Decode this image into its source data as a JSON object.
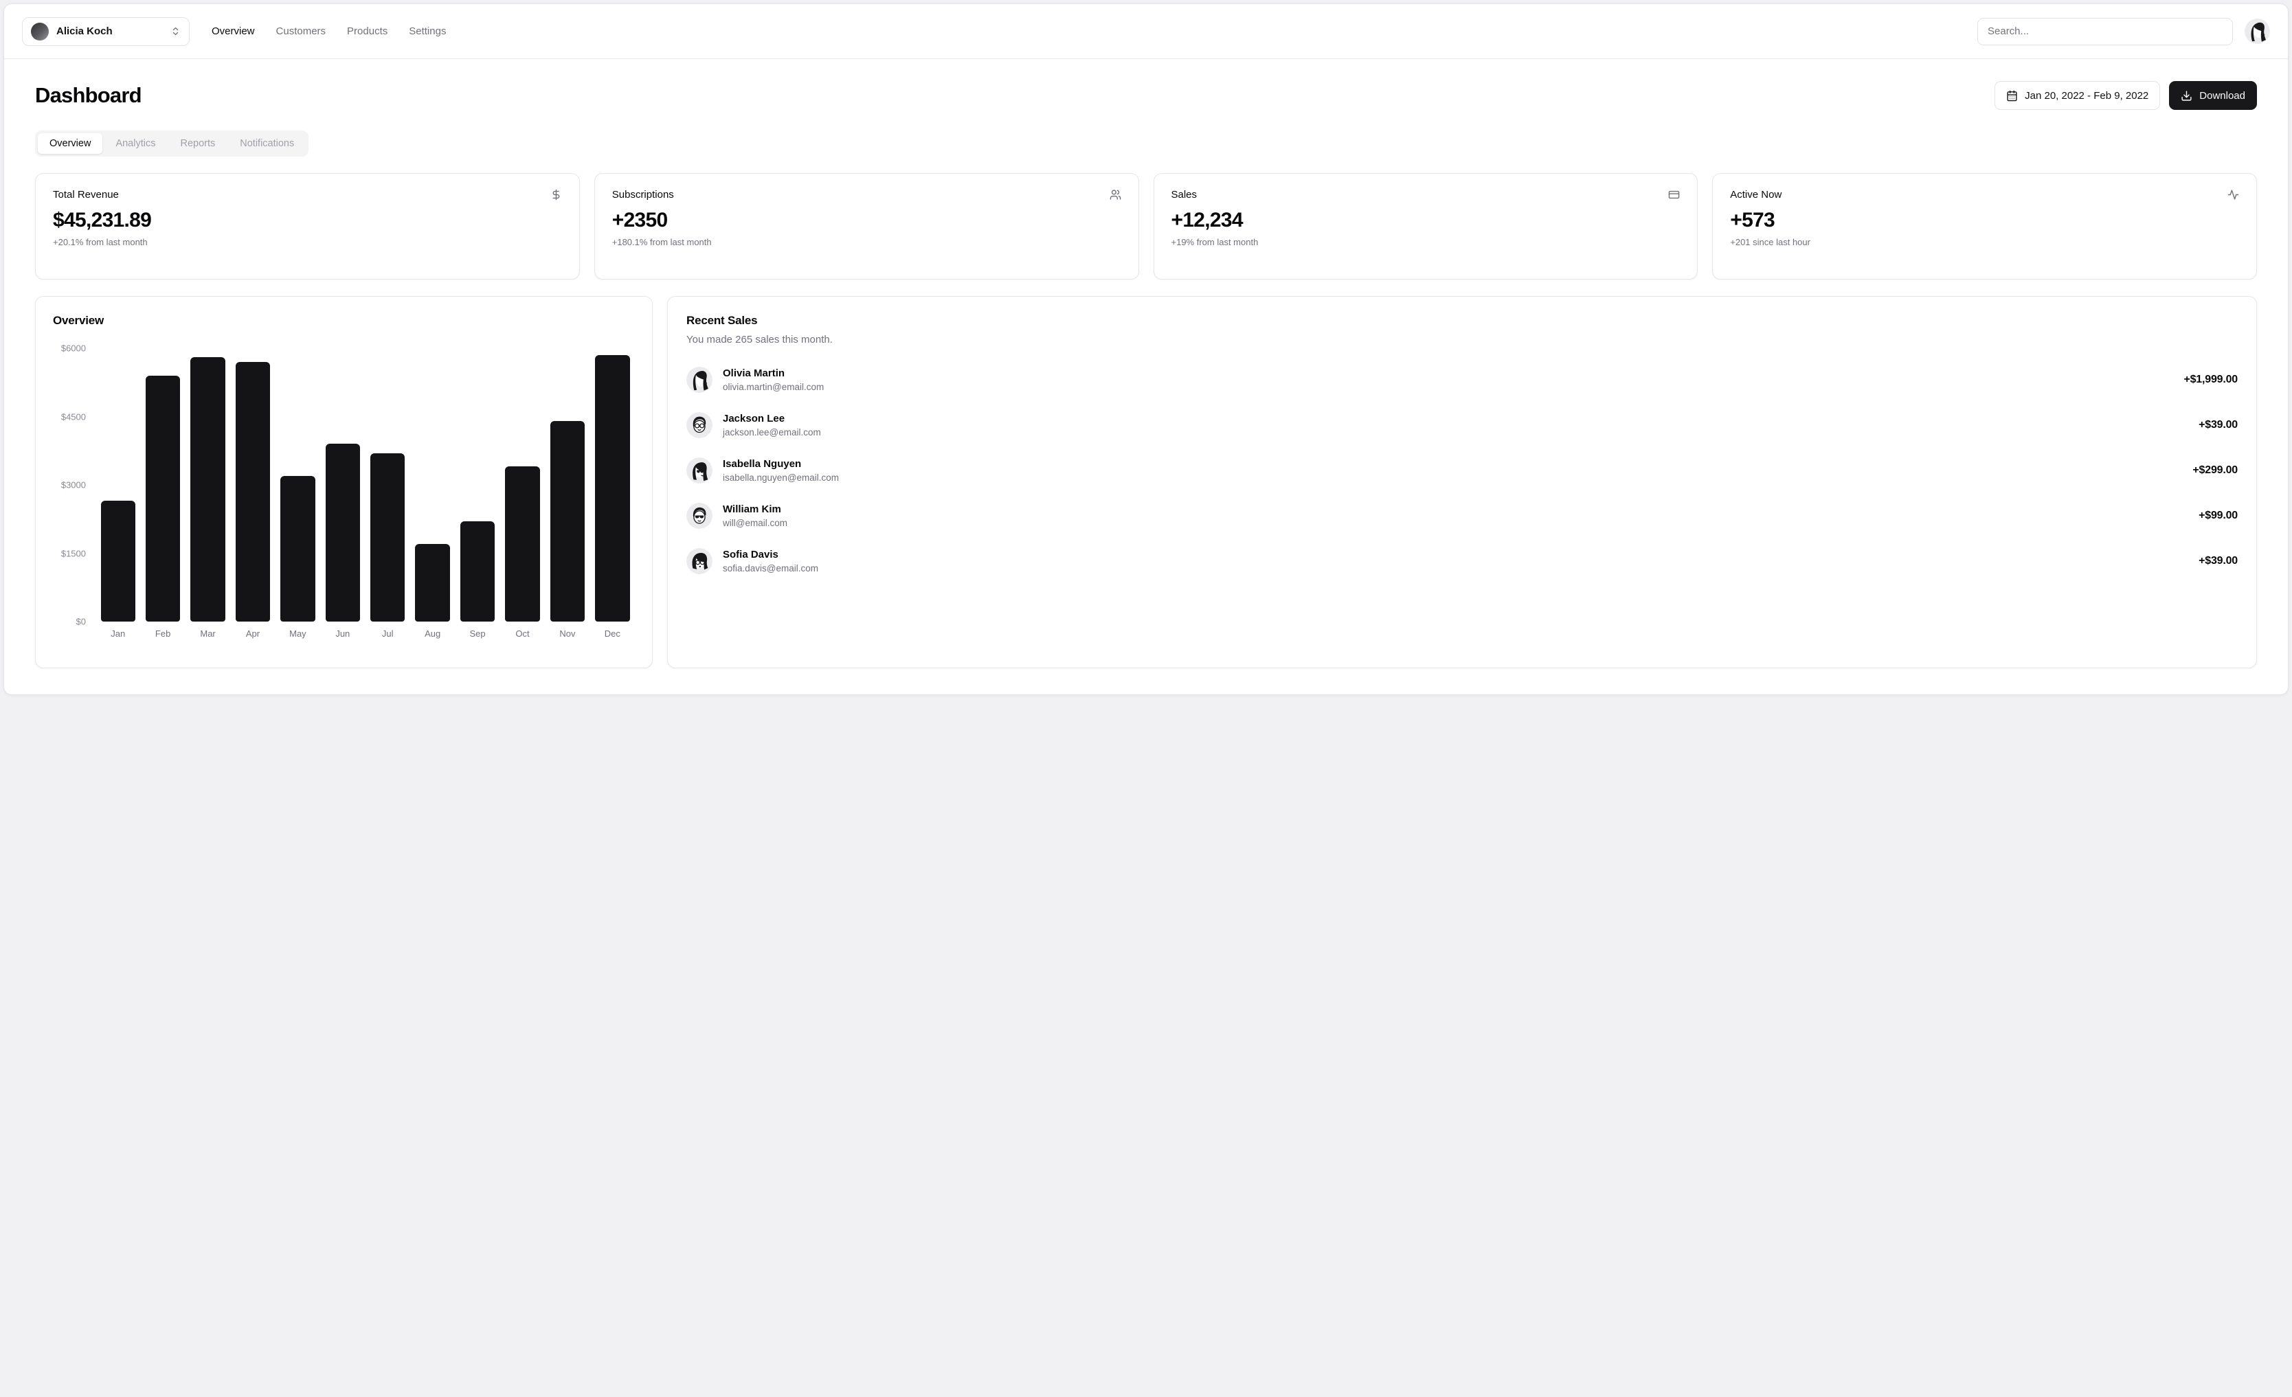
{
  "header": {
    "team_switcher": {
      "name": "Alicia Koch"
    },
    "nav": {
      "0": "Overview",
      "1": "Customers",
      "2": "Products",
      "3": "Settings"
    },
    "search_placeholder": "Search..."
  },
  "page": {
    "title": "Dashboard",
    "date_range": "Jan 20, 2022 - Feb 9, 2022",
    "download_label": "Download",
    "tabs": {
      "0": "Overview",
      "1": "Analytics",
      "2": "Reports",
      "3": "Notifications"
    },
    "active_tab": "Overview"
  },
  "stats": [
    {
      "title": "Total Revenue",
      "icon": "dollar-sign",
      "value": "$45,231.89",
      "sub": "+20.1% from last month"
    },
    {
      "title": "Subscriptions",
      "icon": "users",
      "value": "+2350",
      "sub": "+180.1% from last month"
    },
    {
      "title": "Sales",
      "icon": "credit-card",
      "value": "+12,234",
      "sub": "+19% from last month"
    },
    {
      "title": "Active Now",
      "icon": "activity",
      "value": "+573",
      "sub": "+201 since last hour"
    }
  ],
  "chart_data": {
    "type": "bar",
    "title": "Overview",
    "categories": [
      "Jan",
      "Feb",
      "Mar",
      "Apr",
      "May",
      "Jun",
      "Jul",
      "Aug",
      "Sep",
      "Oct",
      "Nov",
      "Dec"
    ],
    "values": [
      2650,
      5400,
      5800,
      5700,
      3200,
      3900,
      3700,
      1700,
      2200,
      3400,
      4400,
      5850
    ],
    "yticks": [
      "$6000",
      "$4500",
      "$3000",
      "$1500",
      "$0"
    ],
    "ylim": [
      0,
      6000
    ],
    "xlabel": "",
    "ylabel": "",
    "grid": false,
    "legend": false,
    "bar_color": "#141417"
  },
  "recent_sales": {
    "title": "Recent Sales",
    "subtitle": "You made 265 sales this month.",
    "rows": [
      {
        "name": "Olivia Martin",
        "email": "olivia.martin@email.com",
        "amount": "+$1,999.00"
      },
      {
        "name": "Jackson Lee",
        "email": "jackson.lee@email.com",
        "amount": "+$39.00"
      },
      {
        "name": "Isabella Nguyen",
        "email": "isabella.nguyen@email.com",
        "amount": "+$299.00"
      },
      {
        "name": "William Kim",
        "email": "will@email.com",
        "amount": "+$99.00"
      },
      {
        "name": "Sofia Davis",
        "email": "sofia.davis@email.com",
        "amount": "+$39.00"
      }
    ]
  }
}
